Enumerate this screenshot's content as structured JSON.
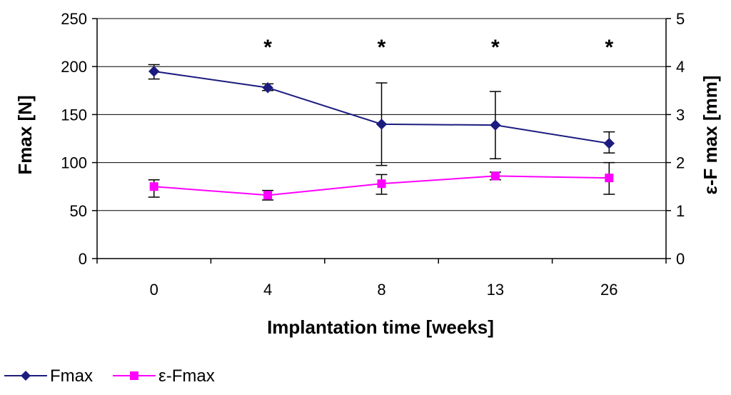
{
  "chart_data": {
    "type": "line",
    "categories": [
      "0",
      "4",
      "8",
      "13",
      "26"
    ],
    "xlabel": "Implantation time [weeks]",
    "ylabel": "Fmax [N]",
    "y2label": "ε-F max [mm]",
    "ylim": [
      0,
      250
    ],
    "yticks": [
      0,
      50,
      100,
      150,
      200,
      250
    ],
    "y2lim": [
      0,
      5
    ],
    "y2ticks": [
      0,
      1,
      2,
      3,
      4,
      5
    ],
    "grid": true,
    "annotations": [
      "*",
      "*",
      "*",
      "*"
    ],
    "annotation_categories": [
      "4",
      "8",
      "13",
      "26"
    ],
    "series": [
      {
        "name": "Fmax",
        "axis": "left",
        "color": "#1c1c80",
        "marker": "diamond",
        "values": [
          195,
          178,
          140,
          139,
          120
        ],
        "err_low": [
          187,
          175,
          97,
          104,
          110
        ],
        "err_high": [
          202,
          182,
          183,
          174,
          132
        ]
      },
      {
        "name": "ε-Fmax",
        "axis": "right",
        "color": "#ff00ff",
        "marker": "square",
        "values": [
          1.5,
          1.32,
          1.56,
          1.72,
          1.68
        ],
        "err_low": [
          1.28,
          1.22,
          1.34,
          1.64,
          1.34
        ],
        "err_high": [
          1.64,
          1.42,
          1.75,
          1.8,
          2.0
        ]
      }
    ],
    "legend": {
      "position": "bottom-left"
    }
  }
}
